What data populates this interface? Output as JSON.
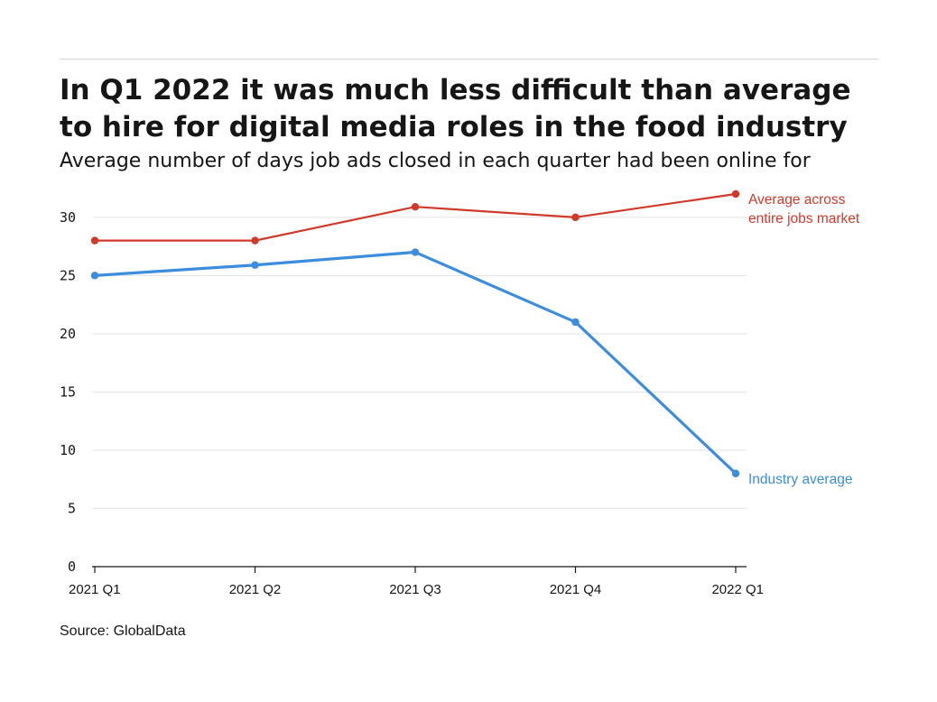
{
  "title": "In Q1 2022 it was much less difficult than average to hire for digital media roles in the food industry",
  "subtitle": "Average number of days job ads closed in each quarter had been online for",
  "source": "Source: GlobalData",
  "colors": {
    "market": "#d13a2b",
    "industry": "#3c8ddd",
    "grid": "#e2e2e2",
    "axis": "#161616"
  },
  "chart_data": {
    "type": "line",
    "categories": [
      "2021 Q1",
      "2021 Q2",
      "2021 Q3",
      "2021 Q4",
      "2022 Q1"
    ],
    "series": [
      {
        "name": "Average across entire jobs market",
        "name_lines": [
          "Average across",
          "entire jobs market"
        ],
        "values": [
          28,
          28,
          30.9,
          30,
          32
        ]
      },
      {
        "name": "Industry average",
        "name_lines": [
          "Industry average"
        ],
        "values": [
          25,
          25.9,
          27,
          21,
          8
        ]
      }
    ],
    "yticks": [
      0,
      5,
      10,
      15,
      20,
      25,
      30
    ],
    "ylim": [
      0,
      32
    ],
    "grid": true,
    "legend": "direct labels at line ends"
  }
}
